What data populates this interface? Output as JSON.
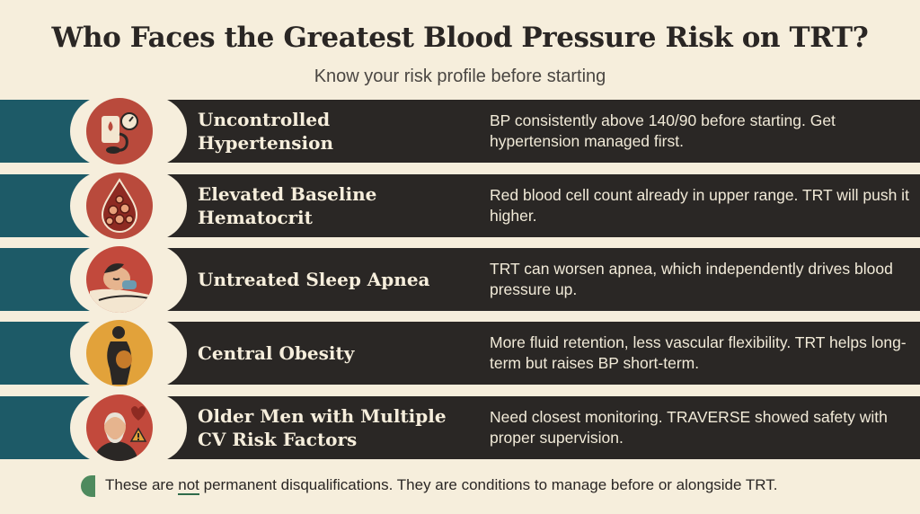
{
  "header": {
    "title": "Who Faces the Greatest Blood Pressure Risk on TRT?",
    "subtitle": "Know your risk profile before starting"
  },
  "rows": [
    {
      "icon": "blood-pressure-gauge-icon",
      "icon_bg": "#b94a3c",
      "label": "Uncontrolled Hypertension",
      "description": "BP consistently above 140/90 before starting. Get hypertension managed first."
    },
    {
      "icon": "red-blood-cells-drop-icon",
      "icon_bg": "#b94a3c",
      "label": "Elevated Baseline Hematocrit",
      "description": "Red blood cell count already in upper range. TRT will push it higher."
    },
    {
      "icon": "sleeping-person-icon",
      "icon_bg": "#c2493c",
      "label": "Untreated Sleep Apnea",
      "description": "TRT can worsen apnea, which independently drives blood pressure up."
    },
    {
      "icon": "body-silhouette-icon",
      "icon_bg": "#e2a23a",
      "label": "Central Obesity",
      "description": "More fluid retention, less vascular flexibility. TRT helps long-term but raises BP short-term."
    },
    {
      "icon": "older-man-heart-warning-icon",
      "icon_bg": "#c2493c",
      "label": "Older Men with Multiple CV Risk Factors",
      "description": "Need closest monitoring. TRAVERSE showed safety with proper supervision."
    }
  ],
  "footer": {
    "note_before": "These are ",
    "note_emphasis": "not",
    "note_after": " permanent disqualifications. They are conditions to manage before or alongside TRT."
  },
  "colors": {
    "background": "#f6eedc",
    "band_teal": "#1d5a67",
    "band_dark": "#2a2725",
    "accent_green": "#4e8a5e"
  }
}
